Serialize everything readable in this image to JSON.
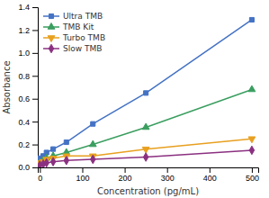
{
  "chart_data": {
    "type": "line",
    "xlabel": "Concentration (pg/mL)",
    "ylabel": "Absorbance",
    "x": [
      0,
      7.8,
      15.6,
      31.25,
      62.5,
      125,
      250,
      500
    ],
    "series": [
      {
        "name": "Ultra TMB",
        "color": "#4472C4",
        "marker": "square",
        "values": [
          0.08,
          0.1,
          0.13,
          0.16,
          0.22,
          0.38,
          0.65,
          1.29
        ]
      },
      {
        "name": "TMB Kit",
        "color": "#3A9E5F",
        "marker": "triangle-up",
        "values": [
          0.04,
          0.06,
          0.08,
          0.1,
          0.13,
          0.2,
          0.35,
          0.68
        ]
      },
      {
        "name": "Turbo TMB",
        "color": "#E8A020",
        "marker": "triangle-down",
        "values": [
          0.04,
          0.05,
          0.07,
          0.08,
          0.1,
          0.1,
          0.16,
          0.25
        ]
      },
      {
        "name": "Slow TMB",
        "color": "#8B3080",
        "marker": "diamond",
        "values": [
          0.02,
          0.03,
          0.04,
          0.05,
          0.06,
          0.07,
          0.09,
          0.15
        ]
      }
    ],
    "xlim": [
      -5,
      515
    ],
    "ylim": [
      0,
      1.4
    ],
    "xticks": [
      0,
      100,
      200,
      300,
      400,
      500
    ],
    "yticks": [
      {
        "value": 0,
        "label": "0.0"
      },
      0.2,
      0.4,
      0.6,
      0.8,
      {
        "value": 1,
        "label": "1.0"
      },
      1.2,
      1.4
    ],
    "legend": "upper left"
  }
}
